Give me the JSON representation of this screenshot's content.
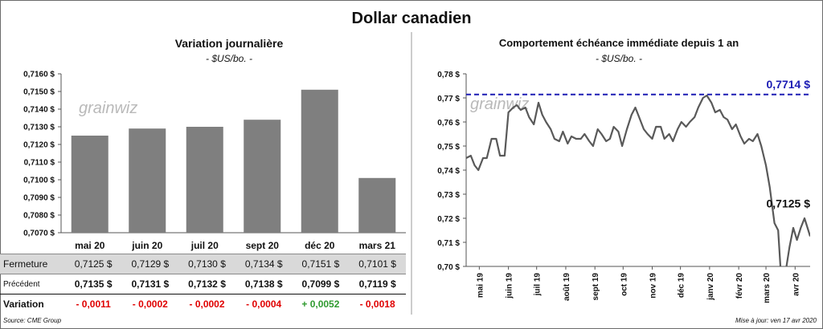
{
  "title": "Dollar canadien",
  "left_title": "Variation  journalière",
  "left_subtitle": "- $US/bo. -",
  "right_title": "Comportement échéance immédiate depuis 1 an",
  "right_subtitle": "- $US/bo. -",
  "logo_text": "grainwiz",
  "source": "Source: CME Group",
  "updated": "Mise à jour: ven 17 avr 2020",
  "table": {
    "rows": [
      {
        "label": "Fermeture",
        "cells": [
          "0,7125  $",
          "0,7129  $",
          "0,7130  $",
          "0,7134  $",
          "0,7151  $",
          "0,7101  $"
        ]
      },
      {
        "label": "Précédent",
        "cells": [
          "0,7135  $",
          "0,7131  $",
          "0,7132  $",
          "0,7138  $",
          "0,7099  $",
          "0,7119  $"
        ]
      },
      {
        "label": "Variation",
        "cells": [
          "- 0,0011",
          "- 0,0002",
          "- 0,0002",
          "- 0,0004",
          "+ 0,0052",
          "- 0,0018"
        ]
      }
    ],
    "variation_colors": [
      "#e00000",
      "#e00000",
      "#e00000",
      "#e00000",
      "#2f9a2f",
      "#e00000"
    ]
  },
  "chart_data": [
    {
      "type": "bar",
      "title": "Variation  journalière",
      "subtitle": "- $US/bo. -",
      "categories": [
        "mai 20",
        "juin 20",
        "juil 20",
        "sept 20",
        "déc 20",
        "mars 21"
      ],
      "values": [
        0.7125,
        0.7129,
        0.713,
        0.7134,
        0.7151,
        0.7101
      ],
      "ylim": [
        0.707,
        0.716
      ],
      "yticks": [
        "0,7070 $",
        "0,7080 $",
        "0,7090 $",
        "0,7100 $",
        "0,7110 $",
        "0,7120 $",
        "0,7130 $",
        "0,7140 $",
        "0,7150 $",
        "0,7160 $"
      ],
      "grid": false,
      "bar_color": "#7f7f7f"
    },
    {
      "type": "line",
      "title": "Comportement échéance immédiate depuis 1 an",
      "subtitle": "- $US/bo. -",
      "ylim": [
        0.7,
        0.78
      ],
      "yticks": [
        "0,70 $",
        "0,71 $",
        "0,72 $",
        "0,73 $",
        "0,74 $",
        "0,75 $",
        "0,76 $",
        "0,77 $",
        "0,78 $"
      ],
      "xticks": [
        "mai 19",
        "juin 19",
        "juil 19",
        "août 19",
        "sept 19",
        "oct 19",
        "nov 19",
        "déc 19",
        "janv 20",
        "févr 20",
        "mars 20",
        "avr 20"
      ],
      "x": [
        "2019-04-17",
        "2019-04-22",
        "2019-04-26",
        "2019-04-30",
        "2019-05-05",
        "2019-05-09",
        "2019-05-14",
        "2019-05-19",
        "2019-05-23",
        "2019-05-28",
        "2019-06-01",
        "2019-06-06",
        "2019-06-10",
        "2019-06-14",
        "2019-06-19",
        "2019-06-23",
        "2019-06-28",
        "2019-07-03",
        "2019-07-07",
        "2019-07-11",
        "2019-07-16",
        "2019-07-20",
        "2019-07-25",
        "2019-07-29",
        "2019-08-03",
        "2019-08-07",
        "2019-08-12",
        "2019-08-17",
        "2019-08-21",
        "2019-08-26",
        "2019-08-30",
        "2019-09-04",
        "2019-09-08",
        "2019-09-13",
        "2019-09-17",
        "2019-09-21",
        "2019-09-26",
        "2019-09-30",
        "2019-10-05",
        "2019-10-10",
        "2019-10-14",
        "2019-10-18",
        "2019-10-23",
        "2019-10-27",
        "2019-11-01",
        "2019-11-05",
        "2019-11-10",
        "2019-11-14",
        "2019-11-19",
        "2019-11-23",
        "2019-11-28",
        "2019-12-02",
        "2019-12-07",
        "2019-12-11",
        "2019-12-16",
        "2019-12-20",
        "2019-12-25",
        "2019-12-29",
        "2020-01-03",
        "2020-01-07",
        "2020-01-12",
        "2020-01-16",
        "2020-01-20",
        "2020-01-25",
        "2020-01-29",
        "2020-02-03",
        "2020-02-07",
        "2020-02-12",
        "2020-02-16",
        "2020-02-21",
        "2020-02-25",
        "2020-03-01",
        "2020-03-05",
        "2020-03-10",
        "2020-03-14",
        "2020-03-18",
        "2020-03-22",
        "2020-03-26",
        "2020-03-30",
        "2020-04-03",
        "2020-04-07",
        "2020-04-11",
        "2020-04-15",
        "2020-04-17"
      ],
      "values": [
        0.745,
        0.746,
        0.742,
        0.74,
        0.745,
        0.745,
        0.753,
        0.753,
        0.746,
        0.746,
        0.764,
        0.766,
        0.767,
        0.765,
        0.766,
        0.762,
        0.759,
        0.768,
        0.763,
        0.76,
        0.757,
        0.753,
        0.752,
        0.756,
        0.751,
        0.754,
        0.753,
        0.753,
        0.755,
        0.752,
        0.75,
        0.757,
        0.755,
        0.752,
        0.753,
        0.758,
        0.756,
        0.75,
        0.757,
        0.763,
        0.766,
        0.762,
        0.757,
        0.755,
        0.753,
        0.758,
        0.758,
        0.753,
        0.755,
        0.752,
        0.757,
        0.76,
        0.758,
        0.76,
        0.762,
        0.766,
        0.77,
        0.771,
        0.768,
        0.764,
        0.765,
        0.762,
        0.761,
        0.757,
        0.759,
        0.754,
        0.751,
        0.753,
        0.752,
        0.755,
        0.75,
        0.742,
        0.733,
        0.718,
        0.715,
        0.69,
        0.698,
        0.708,
        0.716,
        0.711,
        0.716,
        0.72,
        0.715,
        0.7125
      ],
      "reference_line": {
        "value": 0.7714,
        "label": "0,7714  $",
        "color": "#1c1cb4",
        "style": "dashed"
      },
      "last_label": "0,7125 $",
      "line_color": "#595959",
      "grid": false
    }
  ]
}
